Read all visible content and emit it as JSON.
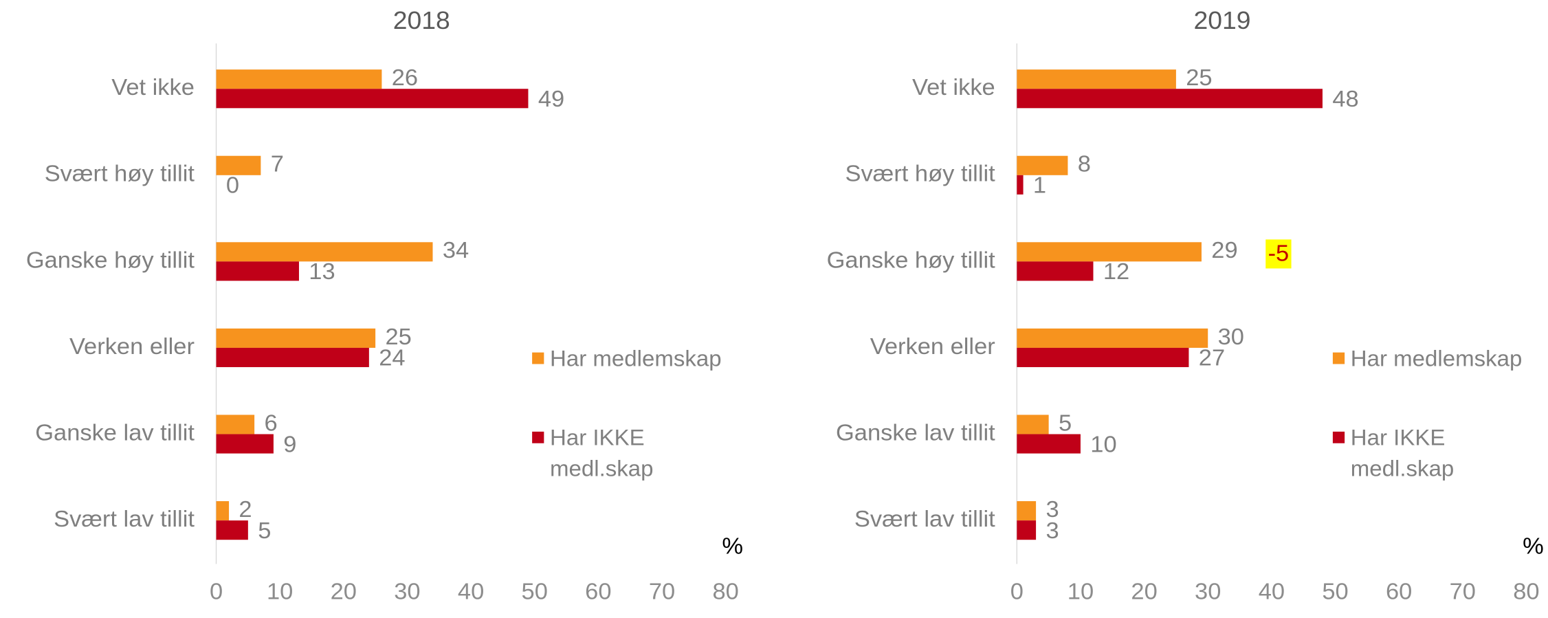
{
  "chart_data": [
    {
      "type": "bar",
      "orientation": "horizontal",
      "title": "2018",
      "categories": [
        "Vet ikke",
        "Svært høy tillit",
        "Ganske høy tillit",
        "Verken eller",
        "Ganske lav tillit",
        "Svært lav tillit"
      ],
      "series": [
        {
          "name": "Har medlemskap",
          "color": "#F7931E",
          "values": [
            26,
            7,
            34,
            25,
            6,
            2
          ]
        },
        {
          "name": "Har IKKE medl.skap",
          "color": "#C00018",
          "values": [
            49,
            0,
            13,
            24,
            9,
            5
          ]
        }
      ],
      "xlim": [
        0,
        80
      ],
      "xticks": [
        0,
        10,
        20,
        30,
        40,
        50,
        60,
        70,
        80
      ],
      "x_label": "%",
      "legend": "right"
    },
    {
      "type": "bar",
      "orientation": "horizontal",
      "title": "2019",
      "categories": [
        "Vet ikke",
        "Svært høy tillit",
        "Ganske høy tillit",
        "Verken eller",
        "Ganske lav tillit",
        "Svært lav tillit"
      ],
      "series": [
        {
          "name": "Har medlemskap",
          "color": "#F7931E",
          "values": [
            25,
            8,
            29,
            30,
            5,
            3
          ]
        },
        {
          "name": "Har IKKE medl.skap",
          "color": "#C00018",
          "values": [
            48,
            1,
            12,
            27,
            10,
            3
          ]
        }
      ],
      "xlim": [
        0,
        80
      ],
      "xticks": [
        0,
        10,
        20,
        30,
        40,
        50,
        60,
        70,
        80
      ],
      "x_label": "%",
      "legend": "right",
      "annotations": [
        "-5"
      ]
    }
  ]
}
